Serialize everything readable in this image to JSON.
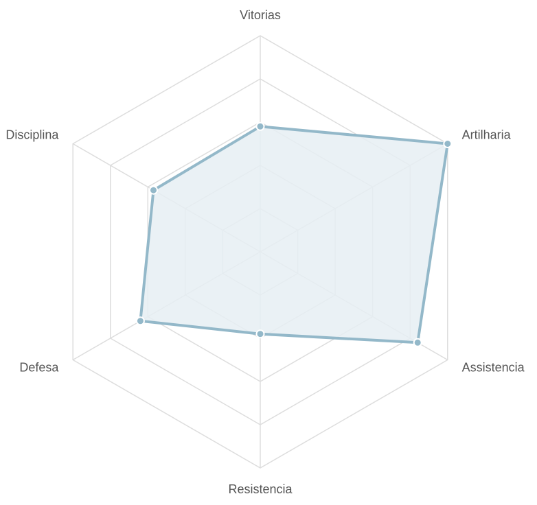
{
  "chart_data": {
    "type": "radar",
    "axes": [
      "Vitorias",
      "Artilharia",
      "Assistencia",
      "Resistencia",
      "Defesa",
      "Disciplina"
    ],
    "series": [
      {
        "values": [
          58,
          100,
          84,
          38,
          64,
          57
        ]
      }
    ],
    "range": [
      0,
      100
    ],
    "rings": 5,
    "grid": true,
    "legend": "none",
    "colors": {
      "line": "#93b8c9",
      "fill": "#e6eef3",
      "point": "#93b8c9",
      "point_stroke": "#ffffff",
      "grid": "#dddddd",
      "label": "#555555"
    }
  }
}
